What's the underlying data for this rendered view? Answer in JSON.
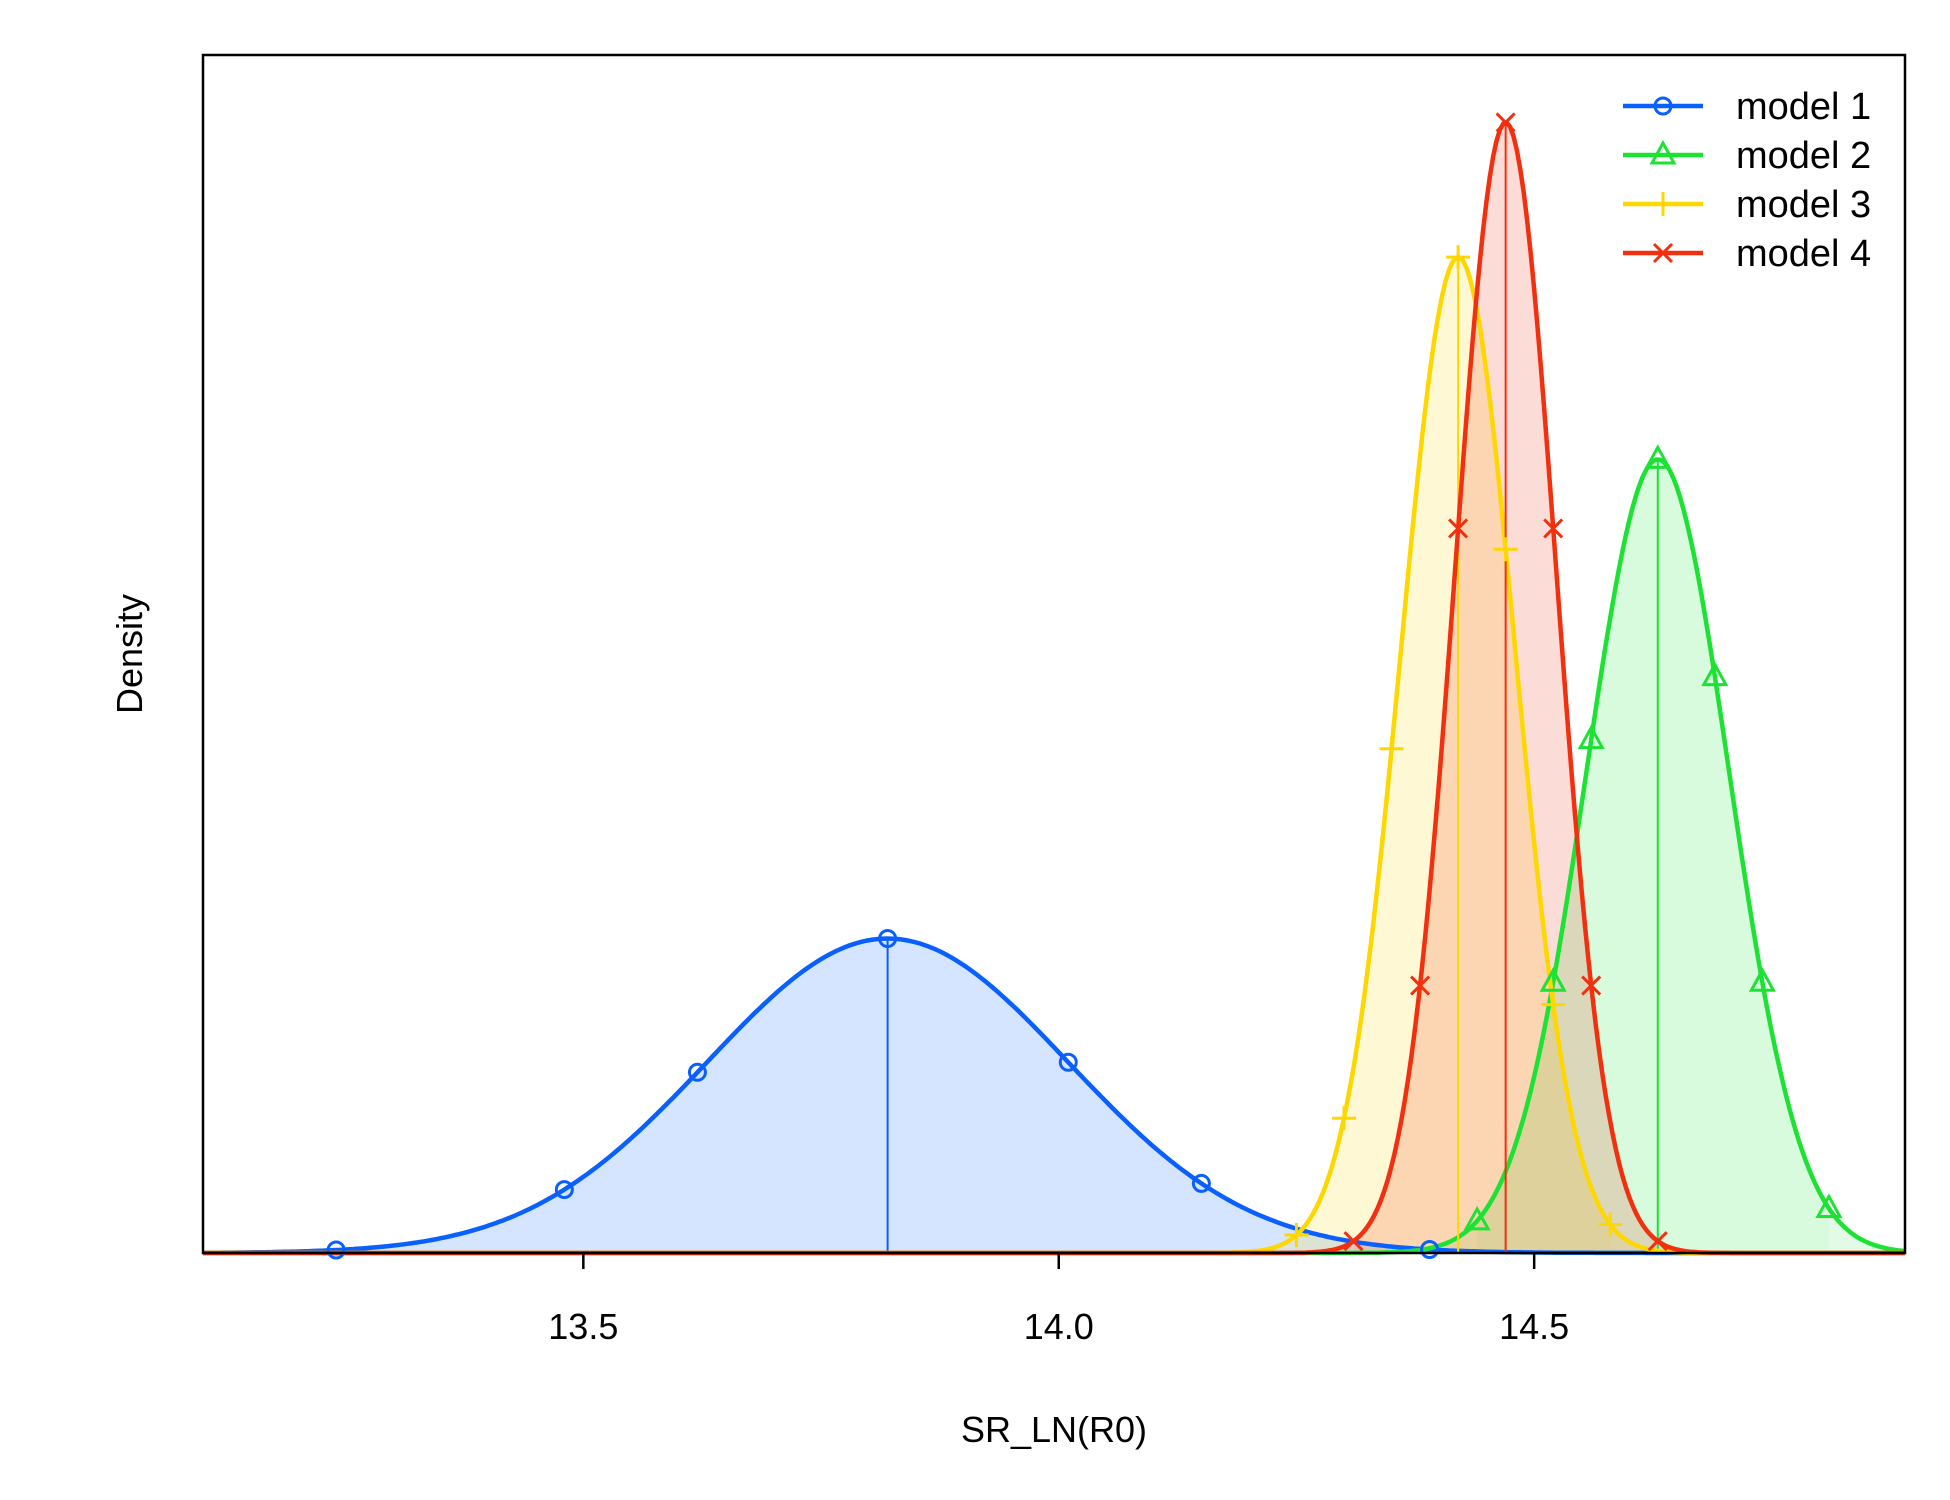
{
  "chart_data": {
    "type": "area",
    "title": "",
    "xlabel": "SR_LN(R0)",
    "ylabel": "Density",
    "xlim": [
      13.1,
      14.89
    ],
    "x_ticks": [
      13.5,
      14.0,
      14.5
    ],
    "x_tick_labels": [
      "13.5",
      "14.0",
      "14.5"
    ],
    "y_axis_ticks_shown": false,
    "legend_position": "top-right",
    "series": [
      {
        "name": "model 1",
        "color": "#0A5FFF",
        "marker": "circle",
        "mean": 13.82,
        "sd": 0.19,
        "peak_density": 2.1,
        "markers_x": [
          13.24,
          13.48,
          13.62,
          14.01,
          14.15,
          14.39
        ],
        "shaded_interval": [
          13.24,
          14.39
        ]
      },
      {
        "name": "model 2",
        "color": "#1CE233",
        "marker": "triangle",
        "mean": 14.63,
        "sd": 0.075,
        "peak_density": 5.3,
        "markers_x": [
          14.44,
          14.52,
          14.56,
          14.69,
          14.74,
          14.81
        ],
        "shaded_interval": [
          14.44,
          14.81
        ]
      },
      {
        "name": "model 3",
        "color": "#FFD700",
        "marker": "plus",
        "mean": 14.42,
        "sd": 0.06,
        "peak_density": 6.65,
        "markers_x": [
          14.25,
          14.3,
          14.35,
          14.47,
          14.52,
          14.58
        ],
        "shaded_interval": [
          14.25,
          14.58
        ]
      },
      {
        "name": "model 4",
        "color": "#F2300F",
        "marker": "cross",
        "mean": 14.47,
        "sd": 0.053,
        "peak_density": 7.55,
        "markers_x": [
          14.31,
          14.38,
          14.42,
          14.52,
          14.56,
          14.63
        ],
        "shaded_interval": [
          14.31,
          14.63
        ]
      }
    ]
  }
}
